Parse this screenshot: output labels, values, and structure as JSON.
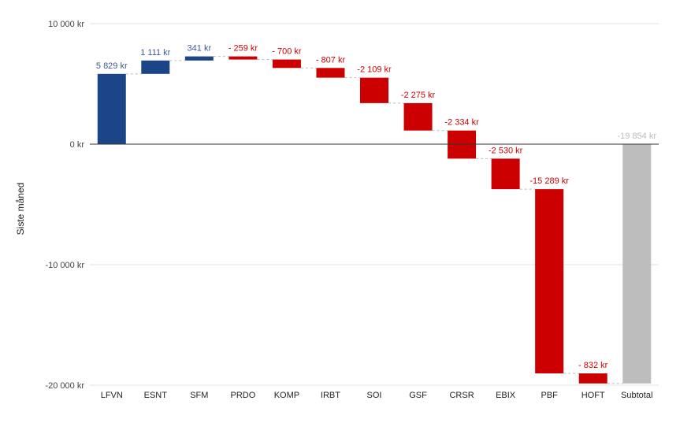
{
  "chart_data": {
    "type": "waterfall",
    "ylabel": "Siste måned",
    "ylim": [
      -20000,
      10000
    ],
    "yticks": [
      {
        "value": 10000,
        "label": "10 000 kr"
      },
      {
        "value": 0,
        "label": "0 kr"
      },
      {
        "value": -10000,
        "label": "-10 000 kr"
      },
      {
        "value": -20000,
        "label": "-20 000 kr"
      }
    ],
    "grid": true,
    "legend": "none",
    "colors": {
      "increase": "#1c4587",
      "decrease": "#cc0000",
      "total": "#bdbdbd",
      "increase_label": "#3c5a96",
      "decrease_label": "#cc0000",
      "total_label": "#bdbdbd",
      "axis_text": "#444444",
      "grid": "#e0e0e0",
      "zero_line": "#333333"
    },
    "categories": [
      "LFVN",
      "ESNT",
      "SFM",
      "PRDO",
      "KOMP",
      "IRBT",
      "SOI",
      "GSF",
      "CRSR",
      "EBIX",
      "PBF",
      "HOFT",
      "Subtotal"
    ],
    "values": [
      5829,
      1111,
      341,
      -259,
      -700,
      -807,
      -2109,
      -2275,
      -2334,
      -2530,
      -15289,
      -832,
      -19854
    ],
    "kinds": [
      "increase",
      "increase",
      "increase",
      "decrease",
      "decrease",
      "decrease",
      "decrease",
      "decrease",
      "decrease",
      "decrease",
      "decrease",
      "decrease",
      "total"
    ],
    "data_labels": [
      "5 829 kr",
      "1 111 kr",
      "341 kr",
      "- 259 kr",
      "- 700 kr",
      "- 807 kr",
      "-2 109 kr",
      "-2 275 kr",
      "-2 334 kr",
      "-2 530 kr",
      "-15 289 kr",
      "- 832 kr",
      "-19 854 kr"
    ]
  }
}
